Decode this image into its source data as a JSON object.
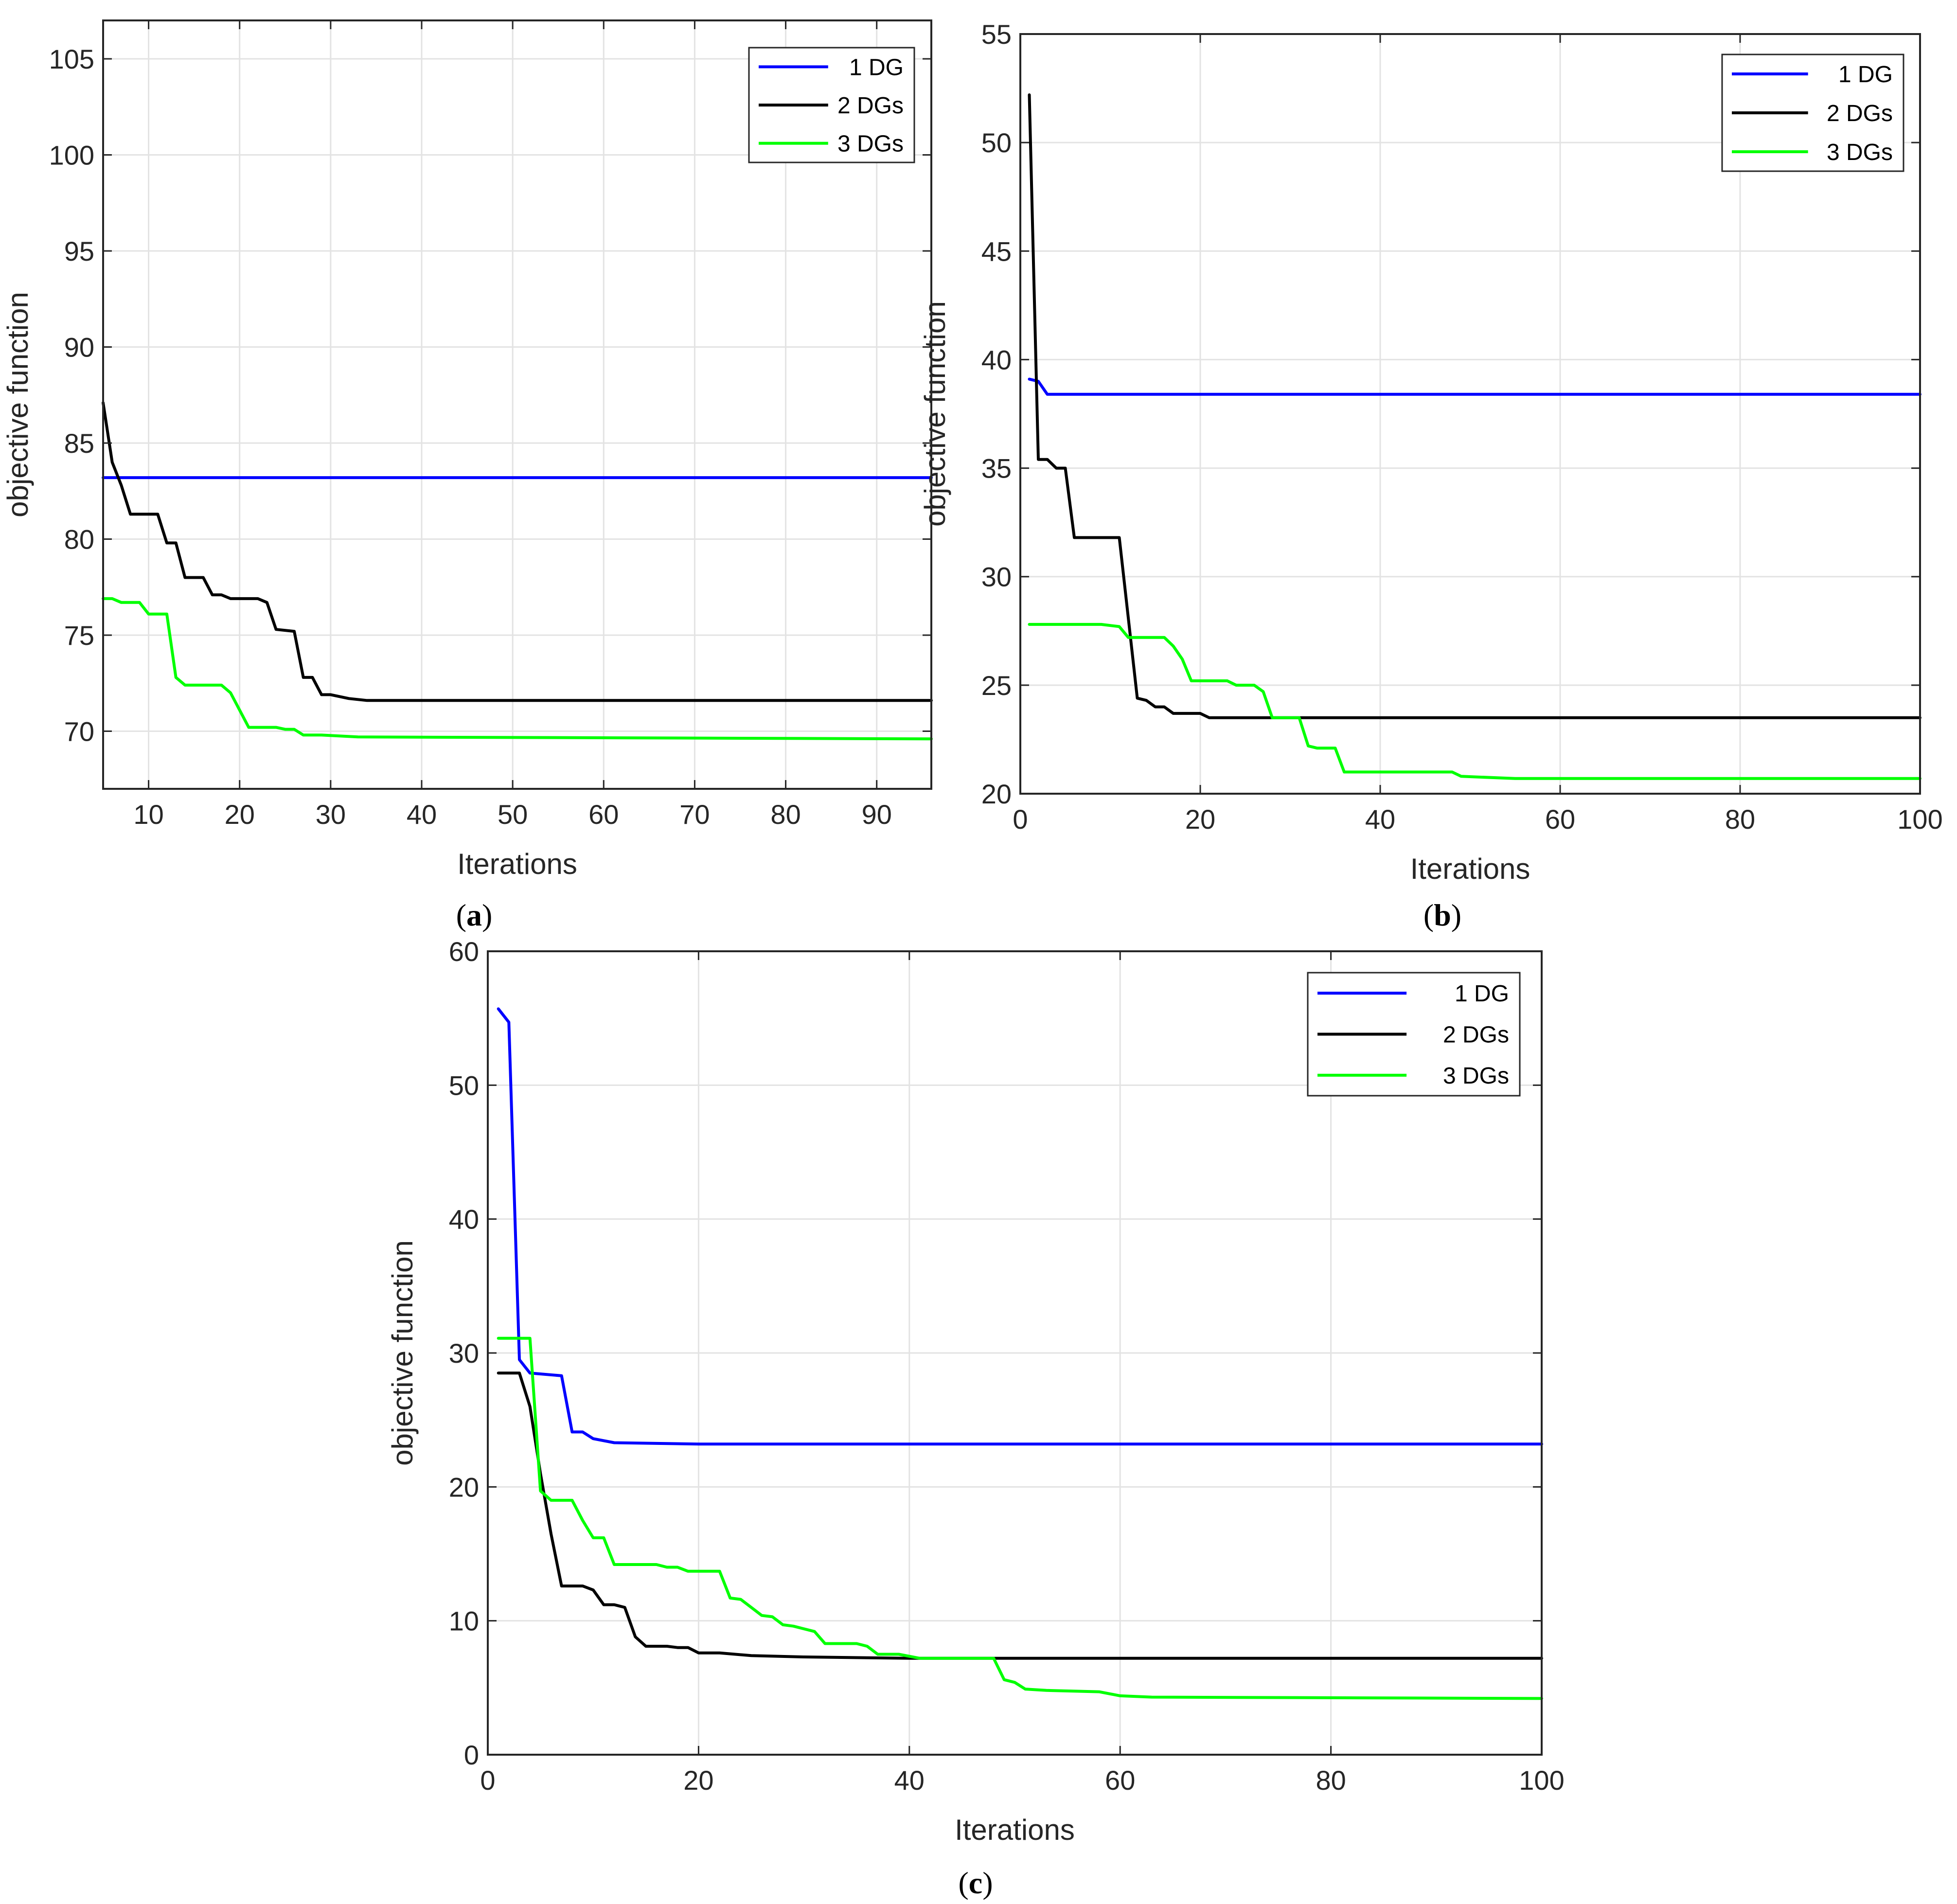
{
  "colors": {
    "dg1": "#0000ff",
    "dg2": "#000000",
    "dg3": "#00ff00",
    "grid": "#e3e3e3",
    "axis": "#262626"
  },
  "chart_data": [
    {
      "id": "a",
      "type": "line",
      "panel_label": "a",
      "xlabel": "Iterations",
      "ylabel": "objective function",
      "xlim": [
        5,
        96
      ],
      "ylim": [
        67,
        107
      ],
      "xticks": [
        10,
        20,
        30,
        40,
        50,
        60,
        70,
        80,
        90
      ],
      "yticks": [
        70,
        75,
        80,
        85,
        90,
        95,
        100,
        105
      ],
      "legend_position": "top-right",
      "series": [
        {
          "name": "1 DG",
          "color": "#0000ff",
          "points": [
            [
              5,
              83.2
            ],
            [
              96,
              83.2
            ]
          ]
        },
        {
          "name": "2 DGs",
          "color": "#000000",
          "points": [
            [
              5,
              87.1
            ],
            [
              6,
              84
            ],
            [
              7,
              82.8
            ],
            [
              8,
              81.3
            ],
            [
              11,
              81.3
            ],
            [
              12,
              79.8
            ],
            [
              13,
              79.8
            ],
            [
              14,
              78
            ],
            [
              16,
              78
            ],
            [
              17,
              77.1
            ],
            [
              18,
              77.1
            ],
            [
              19,
              76.9
            ],
            [
              22,
              76.9
            ],
            [
              23,
              76.7
            ],
            [
              24,
              75.3
            ],
            [
              26,
              75.2
            ],
            [
              27,
              72.8
            ],
            [
              28,
              72.8
            ],
            [
              29,
              71.9
            ],
            [
              30,
              71.9
            ],
            [
              32,
              71.7
            ],
            [
              34,
              71.6
            ],
            [
              96,
              71.6
            ]
          ]
        },
        {
          "name": "3 DGs",
          "color": "#00ff00",
          "points": [
            [
              5,
              76.9
            ],
            [
              6,
              76.9
            ],
            [
              7,
              76.7
            ],
            [
              9,
              76.7
            ],
            [
              10,
              76.1
            ],
            [
              12,
              76.1
            ],
            [
              13,
              72.8
            ],
            [
              14,
              72.4
            ],
            [
              18,
              72.4
            ],
            [
              19,
              72
            ],
            [
              21,
              70.2
            ],
            [
              24,
              70.2
            ],
            [
              25,
              70.1
            ],
            [
              26,
              70.1
            ],
            [
              27,
              69.8
            ],
            [
              29,
              69.8
            ],
            [
              33,
              69.7
            ],
            [
              96,
              69.6
            ]
          ]
        }
      ]
    },
    {
      "id": "b",
      "type": "line",
      "panel_label": "b",
      "xlabel": "Iterations",
      "ylabel": "objective function",
      "xlim": [
        0,
        100
      ],
      "ylim": [
        20,
        55
      ],
      "xticks": [
        0,
        20,
        40,
        60,
        80,
        100
      ],
      "yticks": [
        20,
        25,
        30,
        35,
        40,
        45,
        50,
        55
      ],
      "legend_position": "top-right",
      "series": [
        {
          "name": "1 DG",
          "color": "#0000ff",
          "points": [
            [
              1,
              39.1
            ],
            [
              2,
              39
            ],
            [
              3,
              38.4
            ],
            [
              7,
              38.4
            ],
            [
              100,
              38.4
            ]
          ]
        },
        {
          "name": "2 DGs",
          "color": "#000000",
          "points": [
            [
              1,
              52.2
            ],
            [
              2,
              35.4
            ],
            [
              3,
              35.4
            ],
            [
              4,
              35
            ],
            [
              5,
              35
            ],
            [
              6,
              31.8
            ],
            [
              11,
              31.8
            ],
            [
              13,
              24.4
            ],
            [
              14,
              24.3
            ],
            [
              15,
              24
            ],
            [
              16,
              24
            ],
            [
              17,
              23.7
            ],
            [
              20,
              23.7
            ],
            [
              21,
              23.5
            ],
            [
              100,
              23.5
            ]
          ]
        },
        {
          "name": "3 DGs",
          "color": "#00ff00",
          "points": [
            [
              1,
              27.8
            ],
            [
              9,
              27.8
            ],
            [
              11,
              27.7
            ],
            [
              12,
              27.2
            ],
            [
              16,
              27.2
            ],
            [
              17,
              26.8
            ],
            [
              18,
              26.2
            ],
            [
              19,
              25.2
            ],
            [
              23,
              25.2
            ],
            [
              24,
              25
            ],
            [
              26,
              25
            ],
            [
              27,
              24.7
            ],
            [
              28,
              23.5
            ],
            [
              31,
              23.5
            ],
            [
              32,
              22.2
            ],
            [
              33,
              22.1
            ],
            [
              35,
              22.1
            ],
            [
              36,
              21
            ],
            [
              48,
              21
            ],
            [
              49,
              20.8
            ],
            [
              55,
              20.7
            ],
            [
              100,
              20.7
            ]
          ]
        }
      ]
    },
    {
      "id": "c",
      "type": "line",
      "panel_label": "c",
      "xlabel": "Iterations",
      "ylabel": "objective function",
      "xlim": [
        0,
        100
      ],
      "ylim": [
        0,
        60
      ],
      "xticks": [
        0,
        20,
        40,
        60,
        80,
        100
      ],
      "yticks": [
        0,
        10,
        20,
        30,
        40,
        50,
        60
      ],
      "legend_position": "top-right",
      "series": [
        {
          "name": "1 DG",
          "color": "#0000ff",
          "points": [
            [
              1,
              55.7
            ],
            [
              2,
              54.7
            ],
            [
              3,
              29.5
            ],
            [
              4,
              28.5
            ],
            [
              7,
              28.3
            ],
            [
              8,
              24.1
            ],
            [
              9,
              24.1
            ],
            [
              10,
              23.6
            ],
            [
              12,
              23.3
            ],
            [
              20,
              23.2
            ],
            [
              100,
              23.2
            ]
          ]
        },
        {
          "name": "2 DGs",
          "color": "#000000",
          "points": [
            [
              1,
              28.5
            ],
            [
              3,
              28.5
            ],
            [
              4,
              26
            ],
            [
              5,
              21
            ],
            [
              6,
              16.5
            ],
            [
              7,
              12.6
            ],
            [
              9,
              12.6
            ],
            [
              10,
              12.3
            ],
            [
              11,
              11.2
            ],
            [
              12,
              11.2
            ],
            [
              13,
              11
            ],
            [
              14,
              8.8
            ],
            [
              15,
              8.1
            ],
            [
              17,
              8.1
            ],
            [
              18,
              8
            ],
            [
              19,
              8
            ],
            [
              20,
              7.6
            ],
            [
              22,
              7.6
            ],
            [
              25,
              7.4
            ],
            [
              30,
              7.3
            ],
            [
              40,
              7.2
            ],
            [
              100,
              7.2
            ]
          ]
        },
        {
          "name": "3 DGs",
          "color": "#00ff00",
          "points": [
            [
              1,
              31.1
            ],
            [
              4,
              31.1
            ],
            [
              5,
              19.7
            ],
            [
              6,
              19
            ],
            [
              8,
              19
            ],
            [
              9,
              17.5
            ],
            [
              10,
              16.2
            ],
            [
              11,
              16.2
            ],
            [
              12,
              14.2
            ],
            [
              16,
              14.2
            ],
            [
              17,
              14
            ],
            [
              18,
              14
            ],
            [
              19,
              13.7
            ],
            [
              22,
              13.7
            ],
            [
              23,
              11.7
            ],
            [
              24,
              11.6
            ],
            [
              26,
              10.4
            ],
            [
              27,
              10.3
            ],
            [
              28,
              9.7
            ],
            [
              29,
              9.6
            ],
            [
              31,
              9.2
            ],
            [
              32,
              8.3
            ],
            [
              35,
              8.3
            ],
            [
              36,
              8.1
            ],
            [
              37,
              7.5
            ],
            [
              39,
              7.5
            ],
            [
              41,
              7.2
            ],
            [
              48,
              7.2
            ],
            [
              49,
              5.6
            ],
            [
              50,
              5.4
            ],
            [
              51,
              4.9
            ],
            [
              53,
              4.8
            ],
            [
              58,
              4.7
            ],
            [
              60,
              4.4
            ],
            [
              63,
              4.3
            ],
            [
              100,
              4.2
            ]
          ]
        }
      ]
    }
  ]
}
